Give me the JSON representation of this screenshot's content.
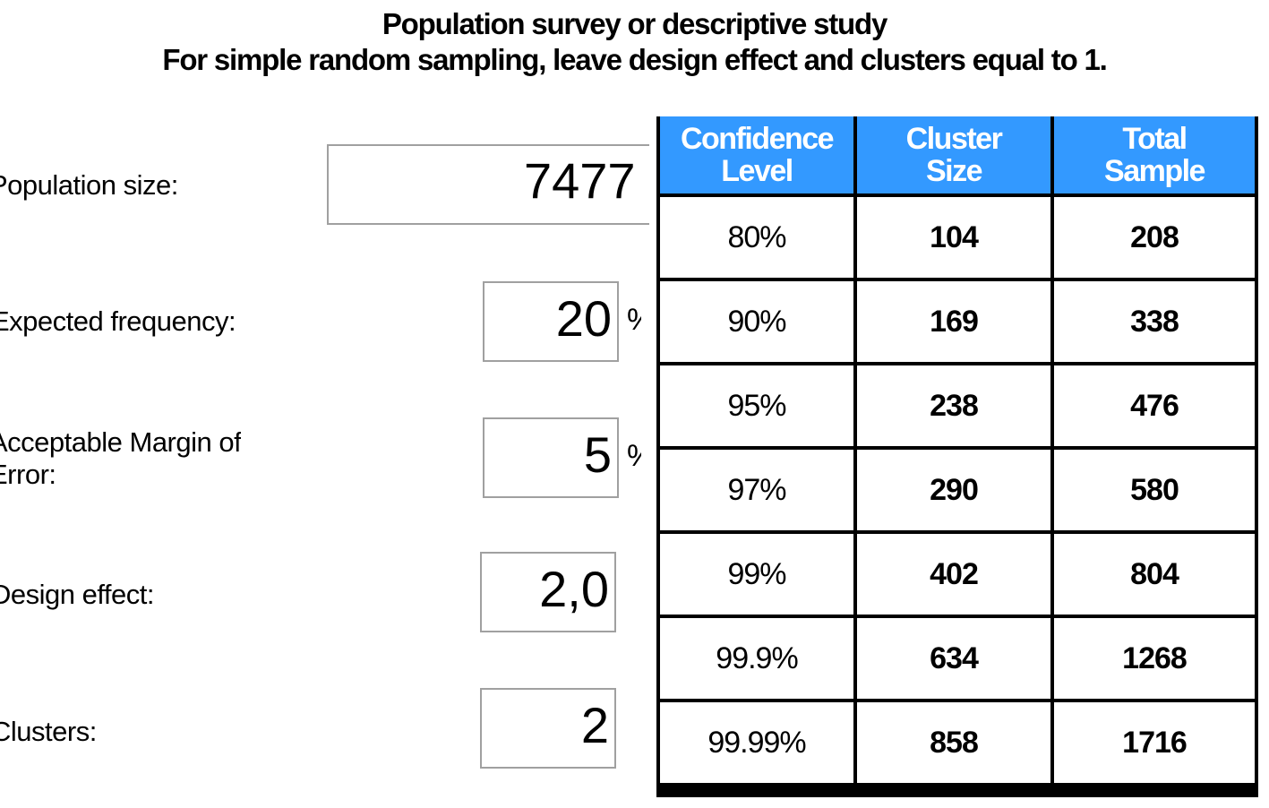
{
  "header": {
    "title": "Population survey or descriptive study",
    "subtitle": "For simple random sampling, leave design effect and clusters equal to 1."
  },
  "form": {
    "population_size": {
      "label": "Population size:",
      "value": "7477"
    },
    "expected_frequency": {
      "label": "Expected frequency:",
      "value": "20",
      "unit": "%"
    },
    "margin_of_error": {
      "label_line1": "Acceptable Margin of",
      "label_line2": "Error:",
      "value": "5",
      "unit": "%"
    },
    "design_effect": {
      "label": "Design effect:",
      "value": "2,0"
    },
    "clusters": {
      "label": "Clusters:",
      "value": "2"
    }
  },
  "results": {
    "headers": [
      {
        "line1": "Confidence",
        "line2": "Level"
      },
      {
        "line1": "Cluster",
        "line2": "Size"
      },
      {
        "line1": "Total",
        "line2": "Sample"
      }
    ],
    "rows": [
      {
        "confidence": "80%",
        "cluster_size": "104",
        "total_sample": "208"
      },
      {
        "confidence": "90%",
        "cluster_size": "169",
        "total_sample": "338"
      },
      {
        "confidence": "95%",
        "cluster_size": "238",
        "total_sample": "476"
      },
      {
        "confidence": "97%",
        "cluster_size": "290",
        "total_sample": "580"
      },
      {
        "confidence": "99%",
        "cluster_size": "402",
        "total_sample": "804"
      },
      {
        "confidence": "99.9%",
        "cluster_size": "634",
        "total_sample": "1268"
      },
      {
        "confidence": "99.99%",
        "cluster_size": "858",
        "total_sample": "1716"
      }
    ],
    "header_color": "#3399ff"
  }
}
